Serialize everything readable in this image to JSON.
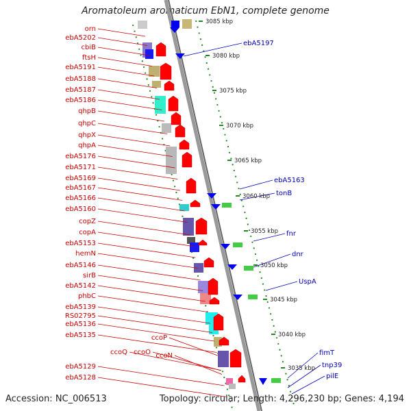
{
  "title": "Aromatoleum aromaticum EbN1, complete genome",
  "footer": {
    "accession": "Accession: NC_006513",
    "topology": "Topology: circular; Length: 4,296,230 bp; Genes: 4,194"
  },
  "scale_labels": [
    "3085 kbp",
    "3080 kbp",
    "3075 kbp",
    "3070 kbp",
    "3065 kbp",
    "3060 kbp",
    "3055 kbp",
    "3050 kbp",
    "3045 kbp",
    "3040 kbp",
    "3035 kbp"
  ],
  "left_genes": [
    "orn",
    "ebA5202",
    "cbiB",
    "ftsH",
    "ebA5191",
    "ebA5188",
    "ebA5187",
    "ebA5186",
    "qhpB",
    "qhpC",
    "qhpX",
    "qhpA",
    "ebA5176",
    "ebA5171",
    "ebA5169",
    "ebA5167",
    "ebA5166",
    "ebA5160",
    "copZ",
    "copA",
    "ebA5153",
    "hemN",
    "ebA5146",
    "sirB",
    "ebA5142",
    "phbC",
    "ebA5139",
    "RS02795",
    "ebA5136",
    "ebA5135",
    "ccoP",
    "ccoQ",
    "ccoO",
    "ccoN",
    "ebA5129",
    "ebA5128"
  ],
  "right_genes": [
    "ebA5197",
    "ebA5163",
    "tonB",
    "fnr",
    "dnr",
    "UspA",
    "fimT",
    "tnp39",
    "pilE"
  ],
  "colors": {
    "left_label": "#cc0000",
    "right_label": "#0000bb",
    "forward_gene": "#ff0000",
    "reverse_gene": "#0000ee",
    "tick": "#228822",
    "backbone": "#888888"
  }
}
